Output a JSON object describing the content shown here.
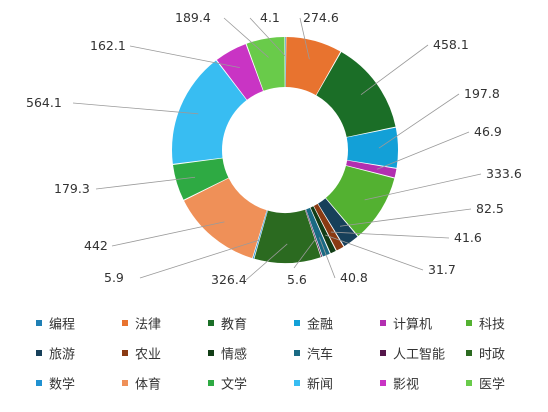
{
  "chart_data": {
    "type": "pie",
    "variant": "donut",
    "start_angle_deg": 0,
    "direction": "clockwise",
    "legend_position": "bottom",
    "slices": [
      {
        "label": "编程",
        "value": 4.1,
        "color": "#1f7fb4"
      },
      {
        "label": "法律",
        "value": 274.6,
        "color": "#e8732f"
      },
      {
        "label": "教育",
        "value": 458.1,
        "color": "#1b6e27"
      },
      {
        "label": "金融",
        "value": 197.8,
        "color": "#13a0d7"
      },
      {
        "label": "计算机",
        "value": 46.9,
        "color": "#b22fb0"
      },
      {
        "label": "科技",
        "value": 333.6,
        "color": "#53b131"
      },
      {
        "label": "旅游",
        "value": 82.5,
        "color": "#17405a"
      },
      {
        "label": "农业",
        "value": 41.6,
        "color": "#8a3a12"
      },
      {
        "label": "情感",
        "value": 31.7,
        "color": "#123d16"
      },
      {
        "label": "汽车",
        "value": 40.8,
        "color": "#1a6a83"
      },
      {
        "label": "人工智能",
        "value": 5.6,
        "color": "#54154a"
      },
      {
        "label": "时政",
        "value": 326.4,
        "color": "#2b6a20"
      },
      {
        "label": "数学",
        "value": 5.9,
        "color": "#2091d1"
      },
      {
        "label": "体育",
        "value": 442,
        "color": "#ef9058"
      },
      {
        "label": "文学",
        "value": 179.3,
        "color": "#2eaa43"
      },
      {
        "label": "新闻",
        "value": 564.1,
        "color": "#38bdf2"
      },
      {
        "label": "影视",
        "value": 162.1,
        "color": "#c934c4"
      },
      {
        "label": "医学",
        "value": 189.4,
        "color": "#69cb4a"
      }
    ]
  }
}
